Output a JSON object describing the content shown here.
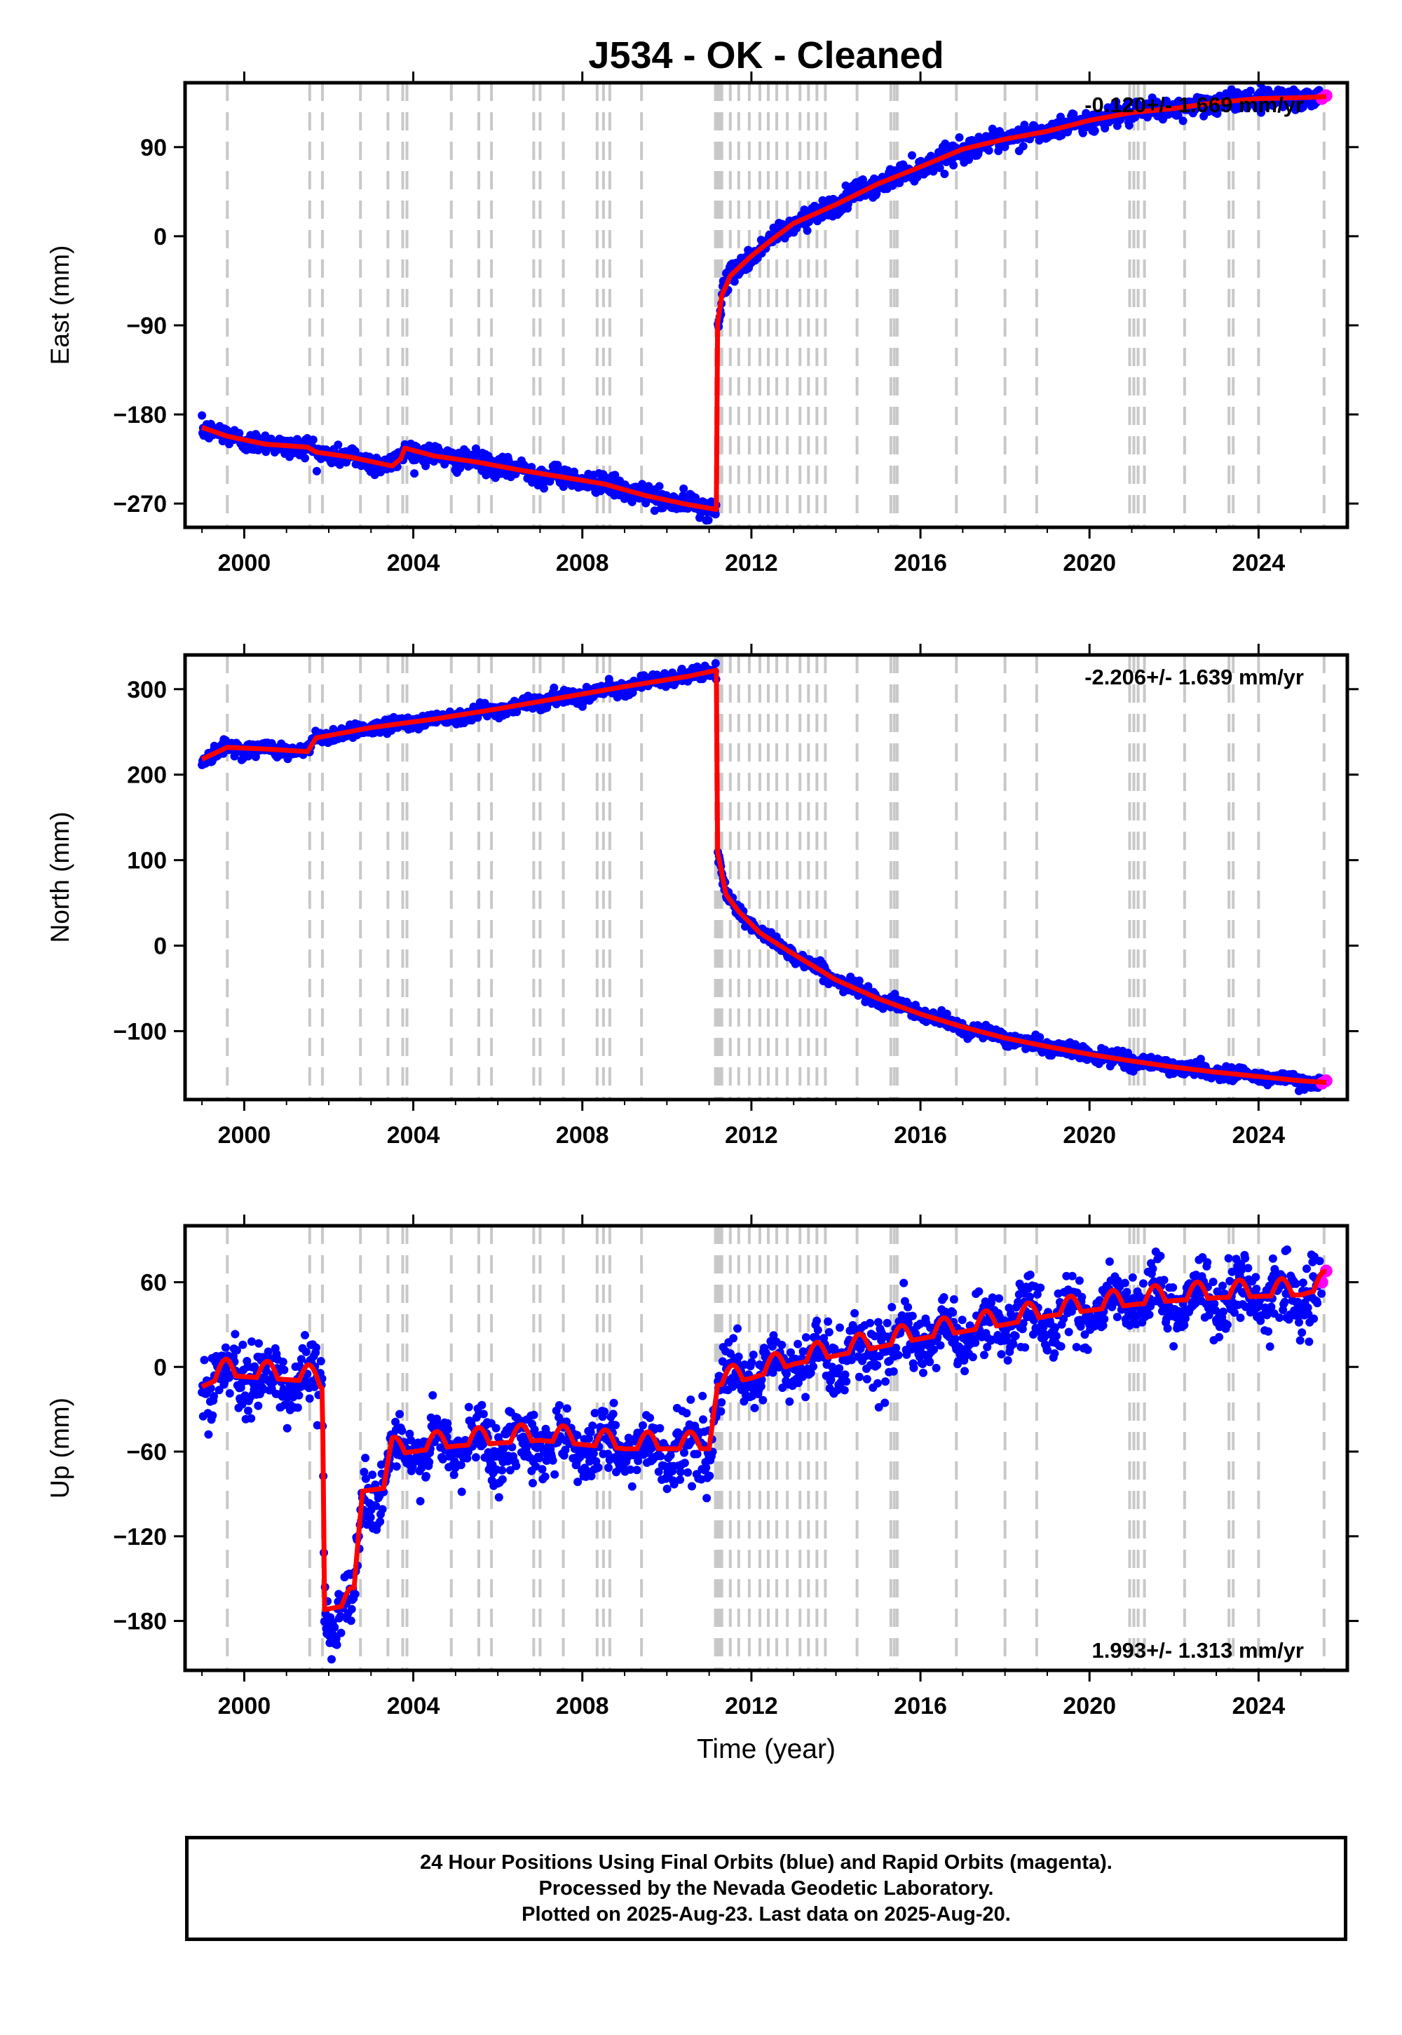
{
  "title": "J534  - OK - Cleaned",
  "colors": {
    "final": "#0000ff",
    "rapid": "#ff00ff",
    "model": "#ff0000",
    "event_line": "#c8c8c8"
  },
  "footer": {
    "line1": "24 Hour Positions Using Final Orbits (blue) and Rapid Orbits (magenta).",
    "line2": "Processed by the Nevada Geodetic Laboratory.",
    "line3": "Plotted on 2025-Aug-23. Last data on 2025-Aug-20."
  },
  "chart_data": [
    {
      "type": "scatter",
      "title": "J534  - OK - Cleaned",
      "ylabel": "East (mm)",
      "xlabel": "",
      "rate_text": "-0.120+/- 1.669 mm/yr",
      "xlim": [
        1998.6,
        2026.1
      ],
      "ylim": [
        -294,
        155
      ],
      "yticks": [
        -270,
        -180,
        -90,
        0,
        90
      ],
      "xticks": [
        2000,
        2004,
        2008,
        2012,
        2016,
        2020,
        2024
      ],
      "x": [
        1999.0,
        1999.6,
        2000.5,
        2001.5,
        2001.7,
        2002.5,
        2003.5,
        2003.7,
        2003.8,
        2004.5,
        2005.5,
        2006.5,
        2007.5,
        2008.5,
        2009.5,
        2010.5,
        2011.17,
        2011.2,
        2011.3,
        2011.5,
        2012.0,
        2012.5,
        2013.0,
        2014.0,
        2015.0,
        2016.0,
        2017.0,
        2018.0,
        2019.0,
        2020.0,
        2021.0,
        2022.0,
        2023.0,
        2024.0,
        2025.0,
        2025.6
      ],
      "y": [
        -193,
        -202,
        -210,
        -213,
        -218,
        -223,
        -232,
        -225,
        -214,
        -222,
        -228,
        -236,
        -243,
        -250,
        -262,
        -271,
        -276,
        -88,
        -60,
        -40,
        -20,
        -3,
        13,
        32,
        53,
        70,
        88,
        98,
        106,
        117,
        125,
        129,
        135,
        139,
        140,
        141
      ],
      "series": [
        {
          "name": "final",
          "orbit": "Final Orbits",
          "color": "#0000ff"
        },
        {
          "name": "rapid",
          "orbit": "Rapid Orbits",
          "color": "#ff00ff",
          "x": [
            2025.5,
            2025.6
          ],
          "y": [
            139,
            142
          ]
        },
        {
          "name": "model",
          "color": "#ff0000"
        }
      ]
    },
    {
      "type": "scatter",
      "ylabel": "North (mm)",
      "xlabel": "",
      "rate_text": "-2.206+/- 1.639 mm/yr",
      "xlim": [
        1998.6,
        2026.1
      ],
      "ylim": [
        -180,
        340
      ],
      "yticks": [
        -100,
        0,
        100,
        200,
        300
      ],
      "xticks": [
        2000,
        2004,
        2008,
        2012,
        2016,
        2020,
        2024
      ],
      "x": [
        1999.0,
        1999.6,
        2000.5,
        2001.5,
        2001.7,
        2003.0,
        2004.5,
        2006.0,
        2007.5,
        2009.0,
        2010.5,
        2011.17,
        2011.2,
        2011.4,
        2011.7,
        2012.2,
        2013.0,
        2014.0,
        2015.0,
        2016.0,
        2017.0,
        2018.0,
        2019.0,
        2020.0,
        2021.0,
        2022.0,
        2023.0,
        2024.0,
        2025.0,
        2025.6
      ],
      "y": [
        218,
        232,
        230,
        227,
        243,
        255,
        265,
        277,
        290,
        303,
        315,
        322,
        110,
        60,
        40,
        15,
        -10,
        -40,
        -62,
        -80,
        -95,
        -108,
        -118,
        -127,
        -135,
        -142,
        -148,
        -153,
        -158,
        -160
      ],
      "series": [
        {
          "name": "final",
          "orbit": "Final Orbits",
          "color": "#0000ff"
        },
        {
          "name": "rapid",
          "orbit": "Rapid Orbits",
          "color": "#ff00ff",
          "x": [
            2025.5,
            2025.6
          ],
          "y": [
            -161,
            -158
          ]
        },
        {
          "name": "model",
          "color": "#ff0000"
        }
      ]
    },
    {
      "type": "scatter",
      "ylabel": "Up (mm)",
      "xlabel": "Time (year)",
      "rate_text": "1.993+/- 1.313 mm/yr",
      "xlim": [
        1998.6,
        2026.1
      ],
      "ylim": [
        -215,
        100
      ],
      "yticks": [
        -180,
        -120,
        -60,
        0,
        60
      ],
      "xticks": [
        2000,
        2004,
        2008,
        2012,
        2016,
        2020,
        2024
      ],
      "x": [
        1999.0,
        1999.6,
        2000.5,
        2001.5,
        2001.85,
        2001.9,
        2002.6,
        2002.8,
        2003.3,
        2003.5,
        2005.0,
        2007.0,
        2009.0,
        2011.0,
        2011.2,
        2012.0,
        2013.0,
        2014.0,
        2015.0,
        2016.0,
        2017.0,
        2018.0,
        2019.0,
        2020.0,
        2021.0,
        2022.0,
        2023.0,
        2024.0,
        2025.0,
        2025.6
      ],
      "y": [
        -14,
        -6,
        -8,
        -10,
        -15,
        -172,
        -168,
        -88,
        -86,
        -62,
        -56,
        -52,
        -58,
        -58,
        -13,
        -8,
        2,
        8,
        14,
        20,
        25,
        30,
        36,
        40,
        44,
        47,
        49,
        50,
        51,
        56
      ],
      "series": [
        {
          "name": "final",
          "orbit": "Final Orbits",
          "color": "#0000ff"
        },
        {
          "name": "rapid",
          "orbit": "Rapid Orbits",
          "color": "#ff00ff",
          "x": [
            2025.5,
            2025.6
          ],
          "y": [
            60,
            68
          ]
        },
        {
          "name": "model",
          "color": "#ff0000"
        }
      ]
    }
  ],
  "event_lines": [
    1999.6,
    2001.55,
    2001.85,
    2002.75,
    2003.4,
    2003.75,
    2003.85,
    2004.9,
    2005.55,
    2005.85,
    2006.85,
    2007.0,
    2007.55,
    2008.35,
    2008.5,
    2008.65,
    2009.4,
    2011.15,
    2011.2,
    2011.25,
    2011.3,
    2011.5,
    2011.7,
    2011.95,
    2012.2,
    2012.4,
    2012.6,
    2012.85,
    2013.15,
    2013.35,
    2013.55,
    2013.75,
    2014.5,
    2015.3,
    2015.38,
    2015.45,
    2016.85,
    2018.0,
    2018.75,
    2020.95,
    2021.05,
    2021.15,
    2021.3,
    2022.25,
    2023.3,
    2023.4,
    2024.0,
    2025.55
  ]
}
